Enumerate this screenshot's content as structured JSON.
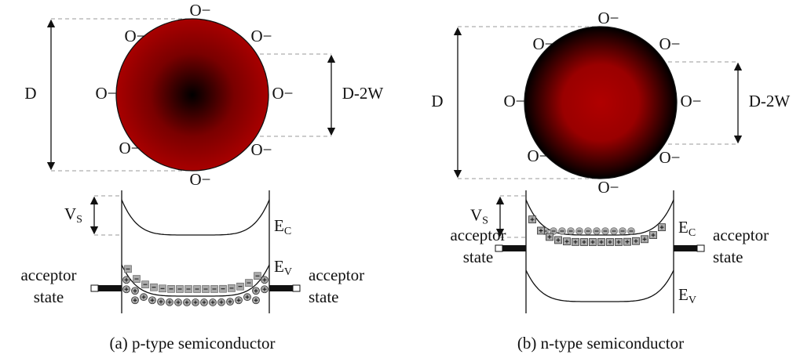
{
  "panels": [
    {
      "circle_labels": [
        "O−",
        "O−",
        "O−",
        "O−",
        "O−",
        "O−",
        "O−",
        "O−"
      ],
      "diameter_label": "D",
      "inner_label": "D-2W",
      "surface_potential": {
        "base": "V",
        "sub": "S"
      },
      "conduction_band": {
        "base": "E",
        "sub": "C"
      },
      "valence_band": {
        "base": "E",
        "sub": "V"
      },
      "acceptor_left": [
        "acceptor",
        "state"
      ],
      "acceptor_right": [
        "acceptor",
        "state"
      ],
      "caption": "(a) p-type semiconductor"
    },
    {
      "circle_labels": [
        "O−",
        "O−",
        "O−",
        "O−",
        "O−",
        "O−",
        "O−",
        "O−"
      ],
      "diameter_label": "D",
      "inner_label": "D-2W",
      "surface_potential": {
        "base": "V",
        "sub": "S"
      },
      "conduction_band": {
        "base": "E",
        "sub": "C"
      },
      "valence_band": {
        "base": "E",
        "sub": "V"
      },
      "acceptor_left": [
        "acceptor",
        "state"
      ],
      "acceptor_right": [
        "acceptor",
        "state"
      ],
      "caption": "(b) n-type semiconductor"
    }
  ]
}
